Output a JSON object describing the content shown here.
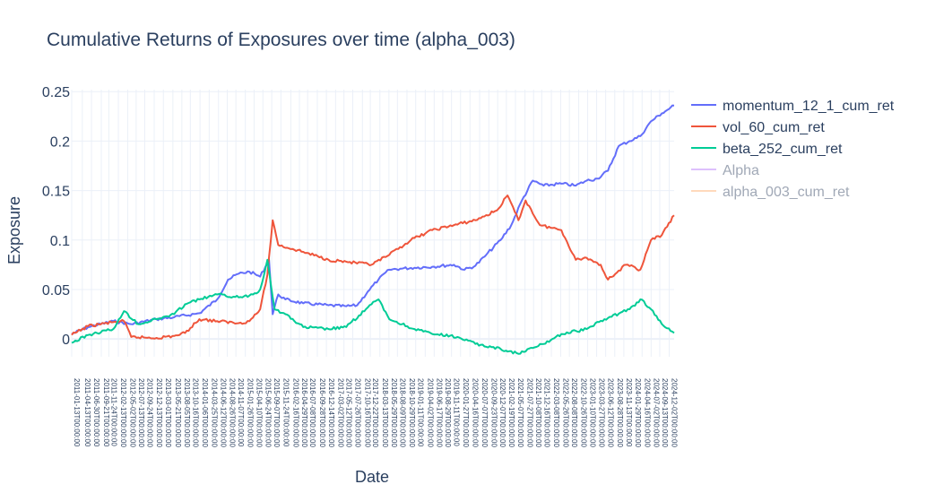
{
  "chart_data": {
    "type": "line",
    "title": "Cumulative Returns of Exposures over time (alpha_003)",
    "xlabel": "Date",
    "ylabel": "Exposure",
    "xlim": [
      "2011-01-13",
      "2025-01-13"
    ],
    "ylim": [
      -0.018,
      0.252
    ],
    "yticks": [
      {
        "value": 0,
        "label": "0"
      },
      {
        "value": 0.05,
        "label": "0.05"
      },
      {
        "value": 0.1,
        "label": "0.1"
      },
      {
        "value": 0.15,
        "label": "0.15"
      },
      {
        "value": 0.2,
        "label": "0.2"
      },
      {
        "value": 0.25,
        "label": "0.25"
      }
    ],
    "xticks": [
      "2011-01-13T00:00:00",
      "2011-04-13T00:00:00",
      "2011-06-30T00:00:00",
      "2011-09-21T00:00:00",
      "2011-11-24T00:00:00",
      "2012-02-13T00:00:00",
      "2012-05-02T00:00:00",
      "2012-07-13T00:00:00",
      "2012-09-24T00:00:00",
      "2012-12-13T00:00:00",
      "2013-03-01T00:00:00",
      "2013-05-21T00:00:00",
      "2013-08-05T00:00:00",
      "2013-10-16T00:00:00",
      "2014-01-06T00:00:00",
      "2014-03-25T00:00:00",
      "2014-06-12T00:00:00",
      "2014-08-26T00:00:00",
      "2014-11-07T00:00:00",
      "2015-01-26T00:00:00",
      "2015-04-10T00:00:00",
      "2015-06-24T00:00:00",
      "2015-09-07T00:00:00",
      "2015-11-24T00:00:00",
      "2016-02-16T00:00:00",
      "2016-04-29T00:00:00",
      "2016-07-08T00:00:00",
      "2016-09-28T00:00:00",
      "2016-12-14T00:00:00",
      "2017-03-02T00:00:00",
      "2017-05-12T00:00:00",
      "2017-07-26T00:00:00",
      "2017-10-16T00:00:00",
      "2017-12-22T00:00:00",
      "2018-03-13T00:00:00",
      "2018-05-29T00:00:00",
      "2018-08-09T00:00:00",
      "2018-10-29T00:00:00",
      "2019-01-11T00:00:00",
      "2019-04-02T00:00:00",
      "2019-06-17T00:00:00",
      "2019-08-29T00:00:00",
      "2019-11-11T00:00:00",
      "2020-01-27T00:00:00",
      "2020-04-16T00:00:00",
      "2020-07-07T00:00:00",
      "2020-09-23T00:00:00",
      "2020-12-07T00:00:00",
      "2021-02-19T00:00:00",
      "2021-05-07T00:00:00",
      "2021-07-27T00:00:00",
      "2021-10-08T00:00:00",
      "2021-12-16T00:00:00",
      "2022-03-08T00:00:00",
      "2022-05-26T00:00:00",
      "2022-08-08T00:00:00",
      "2022-10-26T00:00:00",
      "2023-01-10T00:00:00",
      "2023-03-27T00:00:00",
      "2023-06-12T00:00:00",
      "2023-08-28T00:00:00",
      "2023-11-13T00:00:00",
      "2024-01-29T00:00:00",
      "2024-04-16T00:00:00",
      "2024-07-02T00:00:00",
      "2024-09-13T00:00:00",
      "2024-12-02T00:00:00"
    ],
    "grid": true,
    "legend_position": "top-right",
    "series": [
      {
        "name": "momentum_12_1_cum_ret",
        "color": "#636efa",
        "visible": true,
        "x": [
          "2011-01-13",
          "2011-06-01",
          "2012-01-01",
          "2012-06-01",
          "2013-01-01",
          "2013-06-01",
          "2014-01-01",
          "2014-06-01",
          "2014-09-01",
          "2014-12-01",
          "2015-03-01",
          "2015-06-01",
          "2015-08-15",
          "2015-09-15",
          "2015-11-01",
          "2016-01-01",
          "2016-06-01",
          "2017-01-01",
          "2017-06-01",
          "2017-09-01",
          "2017-12-01",
          "2018-03-01",
          "2018-06-01",
          "2018-09-01",
          "2019-01-01",
          "2019-06-01",
          "2019-12-01",
          "2020-03-01",
          "2020-06-01",
          "2020-09-01",
          "2021-01-01",
          "2021-04-01",
          "2021-07-01",
          "2021-10-01",
          "2022-01-01",
          "2022-06-01",
          "2022-10-01",
          "2023-01-01",
          "2023-04-01",
          "2023-07-01",
          "2023-10-01",
          "2024-01-01",
          "2024-04-01",
          "2024-07-01",
          "2024-10-01",
          "2025-01-13"
        ],
        "y": [
          0.005,
          0.012,
          0.018,
          0.015,
          0.02,
          0.022,
          0.026,
          0.04,
          0.06,
          0.066,
          0.068,
          0.063,
          0.08,
          0.025,
          0.045,
          0.04,
          0.036,
          0.034,
          0.033,
          0.034,
          0.048,
          0.06,
          0.07,
          0.071,
          0.072,
          0.073,
          0.075,
          0.07,
          0.074,
          0.085,
          0.1,
          0.115,
          0.14,
          0.16,
          0.155,
          0.157,
          0.155,
          0.16,
          0.162,
          0.17,
          0.195,
          0.2,
          0.205,
          0.22,
          0.228,
          0.236
        ]
      },
      {
        "name": "vol_60_cum_ret",
        "color": "#ef553b",
        "visible": true,
        "x": [
          "2011-01-13",
          "2011-06-01",
          "2012-01-01",
          "2012-04-01",
          "2012-06-01",
          "2013-01-01",
          "2013-06-01",
          "2013-09-01",
          "2014-01-01",
          "2014-06-01",
          "2014-12-01",
          "2015-03-01",
          "2015-06-01",
          "2015-08-01",
          "2015-09-15",
          "2015-11-01",
          "2016-06-01",
          "2017-01-01",
          "2017-06-01",
          "2018-01-01",
          "2018-06-01",
          "2018-12-01",
          "2019-06-01",
          "2019-12-01",
          "2020-06-01",
          "2020-12-01",
          "2021-03-01",
          "2021-06-01",
          "2021-08-01",
          "2021-12-01",
          "2022-06-01",
          "2022-10-01",
          "2023-01-01",
          "2023-05-01",
          "2023-07-01",
          "2023-12-01",
          "2024-04-01",
          "2024-07-01",
          "2024-10-01",
          "2025-01-13"
        ],
        "y": [
          0.004,
          0.013,
          0.017,
          0.018,
          0.002,
          0.001,
          0.003,
          0.006,
          0.02,
          0.018,
          0.016,
          0.018,
          0.03,
          0.065,
          0.12,
          0.095,
          0.088,
          0.08,
          0.078,
          0.075,
          0.085,
          0.1,
          0.11,
          0.115,
          0.12,
          0.13,
          0.145,
          0.12,
          0.14,
          0.115,
          0.11,
          0.08,
          0.082,
          0.075,
          0.06,
          0.075,
          0.07,
          0.1,
          0.105,
          0.125
        ]
      },
      {
        "name": "beta_252_cum_ret",
        "color": "#00cc96",
        "visible": true,
        "x": [
          "2011-01-13",
          "2011-06-01",
          "2012-01-01",
          "2012-04-01",
          "2012-08-01",
          "2013-01-01",
          "2013-06-01",
          "2013-09-01",
          "2014-01-01",
          "2014-06-01",
          "2014-12-01",
          "2015-04-01",
          "2015-06-01",
          "2015-08-01",
          "2015-10-01",
          "2016-01-01",
          "2016-06-01",
          "2017-01-01",
          "2017-06-01",
          "2018-01-01",
          "2018-03-01",
          "2018-06-01",
          "2019-01-01",
          "2019-06-01",
          "2020-01-01",
          "2020-06-01",
          "2021-01-01",
          "2021-06-01",
          "2022-01-01",
          "2022-06-01",
          "2023-01-01",
          "2023-06-01",
          "2024-01-01",
          "2024-04-01",
          "2024-07-01",
          "2024-10-01",
          "2025-01-13"
        ],
        "y": [
          -0.004,
          0.004,
          0.01,
          0.028,
          0.015,
          0.02,
          0.025,
          0.035,
          0.04,
          0.045,
          0.042,
          0.045,
          0.05,
          0.08,
          0.03,
          0.025,
          0.012,
          0.01,
          0.012,
          0.035,
          0.04,
          0.02,
          0.01,
          0.005,
          0.002,
          -0.005,
          -0.01,
          -0.015,
          -0.005,
          0.005,
          0.01,
          0.02,
          0.03,
          0.04,
          0.03,
          0.015,
          0.006
        ]
      },
      {
        "name": "Alpha",
        "color": "#ab63fa",
        "visible": false,
        "x": [],
        "y": []
      },
      {
        "name": "alpha_003_cum_ret",
        "color": "#ffa15a",
        "visible": false,
        "x": [],
        "y": []
      }
    ]
  }
}
